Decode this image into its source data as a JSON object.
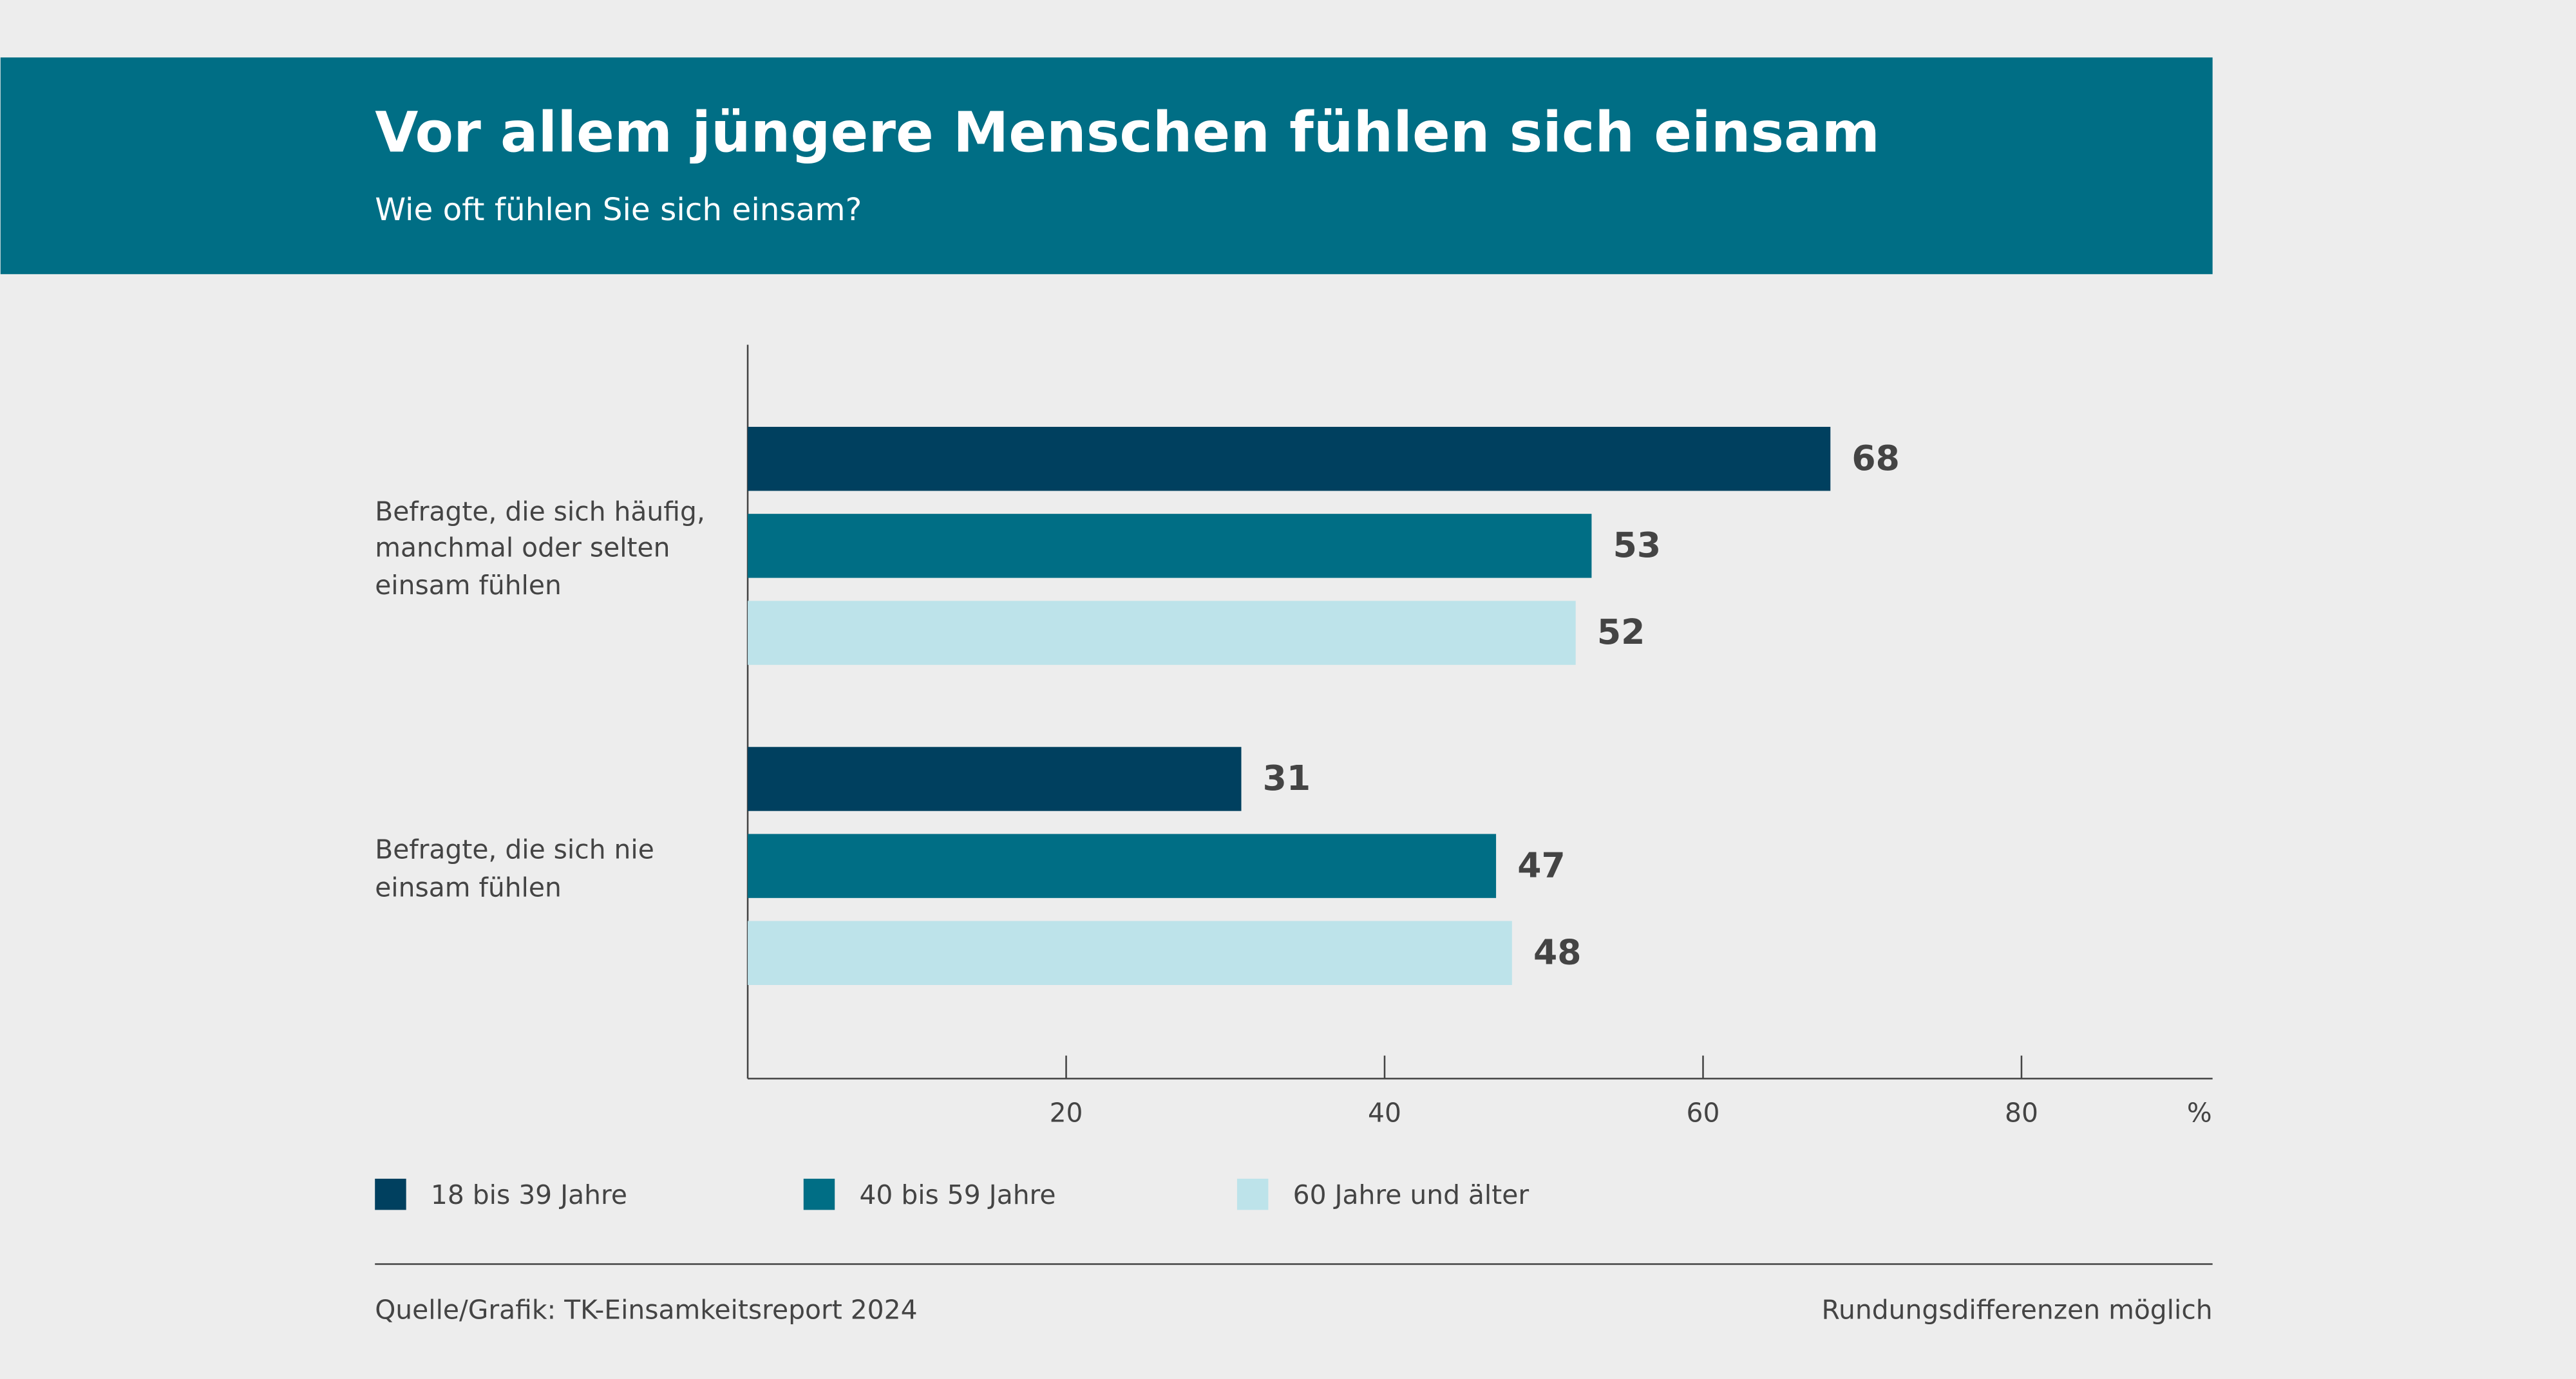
{
  "chart_data": {
    "type": "hbar",
    "title": "Vor allem jüngere Menschen fühlen sich einsam",
    "subtitle": "Wie oft fühlen Sie sich einsam?",
    "categories": [
      "Befragte, die sich häufig,\nmanchmal oder selten\neinsam fühlen",
      "Befragte, die sich nie\neinsam fühlen"
    ],
    "series": [
      {
        "name": "18 bis 39 Jahre",
        "color": "#00405f",
        "values": [
          68,
          31
        ]
      },
      {
        "name": "40 bis 59 Jahre",
        "color": "#006e85",
        "values": [
          53,
          47
        ]
      },
      {
        "name": "60 Jahre und älter",
        "color": "#bde3ea",
        "values": [
          52,
          48
        ]
      }
    ],
    "xlim": [
      0,
      92
    ],
    "xticks": [
      20,
      40,
      60,
      80
    ],
    "x_unit": "%",
    "source": "Quelle/Grafik: TK-Einsamkeitsreport 2024",
    "note": "Rundungsdifferenzen möglich"
  }
}
